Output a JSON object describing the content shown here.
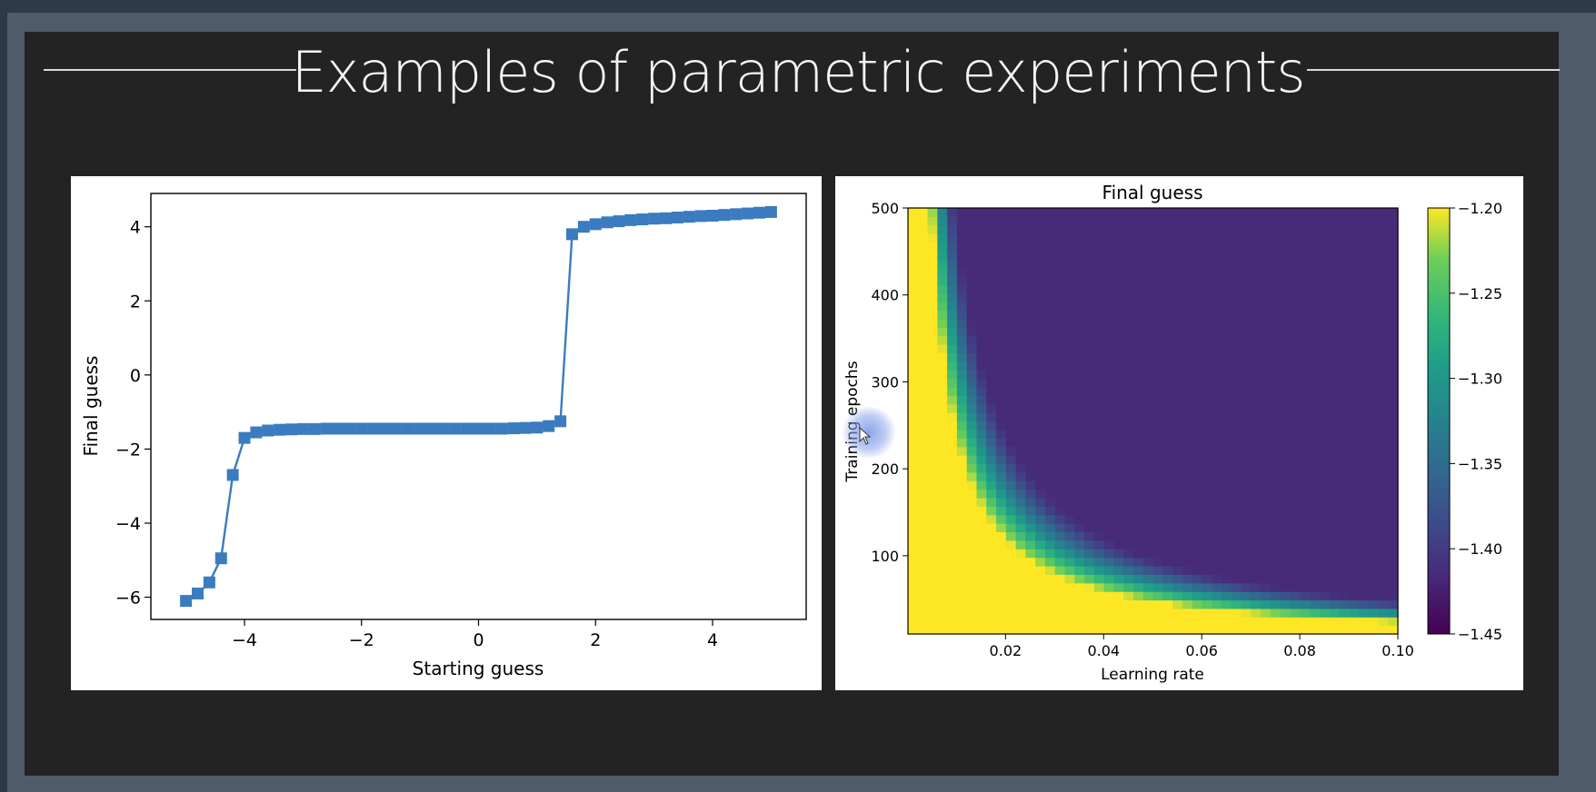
{
  "slide": {
    "title": "Examples of parametric experiments"
  },
  "colors": {
    "line_series": "#3b7bbf",
    "viridis_low": "#482878",
    "viridis_high": "#fde725"
  },
  "chart_data": [
    {
      "type": "line",
      "title": "",
      "xlabel": "Starting guess",
      "ylabel": "Final guess",
      "xlim": [
        -5.6,
        5.6
      ],
      "ylim": [
        -6.6,
        4.9
      ],
      "xticks": [
        -4,
        -2,
        0,
        2,
        4
      ],
      "xtick_labels": [
        "−4",
        "−2",
        "0",
        "2",
        "4"
      ],
      "yticks": [
        -6,
        -4,
        -2,
        0,
        2,
        4
      ],
      "ytick_labels": [
        "−6",
        "−4",
        "−2",
        "0",
        "2",
        "4"
      ],
      "marker": "square",
      "series": [
        {
          "x": [
            -5.0,
            -4.8,
            -4.6,
            -4.4,
            -4.2,
            -4.0,
            -3.8,
            -3.6,
            -3.4,
            -3.2,
            -3.0,
            -2.8,
            -2.6,
            -2.4,
            -2.2,
            -2.0,
            -1.8,
            -1.6,
            -1.4,
            -1.2,
            -1.0,
            -0.8,
            -0.6,
            -0.4,
            -0.2,
            0.0,
            0.2,
            0.4,
            0.6,
            0.8,
            1.0,
            1.2,
            1.4,
            1.6,
            1.8,
            2.0,
            2.2,
            2.4,
            2.6,
            2.8,
            3.0,
            3.2,
            3.4,
            3.6,
            3.8,
            4.0,
            4.2,
            4.4,
            4.6,
            4.8,
            5.0
          ],
          "y": [
            -6.1,
            -5.9,
            -5.6,
            -4.95,
            -2.7,
            -1.7,
            -1.55,
            -1.5,
            -1.48,
            -1.47,
            -1.46,
            -1.46,
            -1.45,
            -1.45,
            -1.45,
            -1.45,
            -1.45,
            -1.45,
            -1.45,
            -1.45,
            -1.45,
            -1.45,
            -1.45,
            -1.45,
            -1.45,
            -1.45,
            -1.45,
            -1.45,
            -1.44,
            -1.43,
            -1.42,
            -1.38,
            -1.25,
            3.8,
            4.0,
            4.07,
            4.12,
            4.15,
            4.18,
            4.2,
            4.22,
            4.23,
            4.25,
            4.27,
            4.29,
            4.3,
            4.32,
            4.34,
            4.36,
            4.38,
            4.4
          ]
        }
      ]
    },
    {
      "type": "heatmap",
      "title": "Final guess",
      "xlabel": "Learning rate",
      "ylabel": "Training epochs",
      "xlim": [
        0.0001,
        0.1
      ],
      "ylim": [
        10,
        500
      ],
      "xticks": [
        0.02,
        0.04,
        0.06,
        0.08,
        0.1
      ],
      "xtick_labels": [
        "0.02",
        "0.04",
        "0.06",
        "0.08",
        "0.10"
      ],
      "yticks": [
        100,
        200,
        300,
        400,
        500
      ],
      "yticks_labels": [
        "100",
        "200",
        "300",
        "400",
        "500"
      ],
      "colorscale": "viridis",
      "colorbar_range": [
        -1.45,
        -1.2
      ],
      "colorbar_ticks": [
        -1.2,
        -1.25,
        -1.3,
        -1.35,
        -1.4,
        -1.45
      ],
      "colorbar_tick_labels": [
        "−1.20",
        "−1.25",
        "−1.30",
        "−1.35",
        "−1.40",
        "−1.45"
      ],
      "value_floor": -1.415,
      "value_ceiling": -1.2,
      "description_of_surface": "Final guess converges to about -1.415 when learning rate x epochs is large; stays at or above -1.20 when the product is small",
      "grid_cols": 50,
      "grid_rows": 50
    }
  ]
}
